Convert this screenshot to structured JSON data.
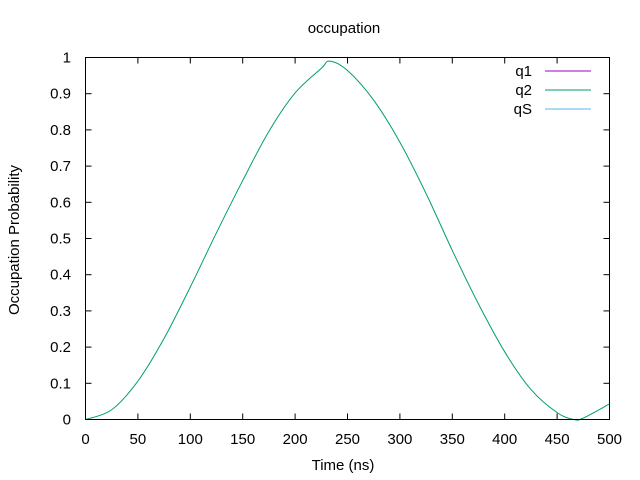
{
  "chart_data": {
    "type": "line",
    "title": "occupation",
    "xlabel": "Time (ns)",
    "ylabel": "Occupation Probability",
    "xlim": [
      0,
      500
    ],
    "ylim": [
      0,
      1
    ],
    "xticks": [
      0,
      50,
      100,
      150,
      200,
      250,
      300,
      350,
      400,
      450,
      500
    ],
    "yticks": [
      0,
      0.1,
      0.2,
      0.3,
      0.4,
      0.5,
      0.6,
      0.7,
      0.8,
      0.9,
      1
    ],
    "xtick_labels": [
      "0",
      "50",
      "100",
      "150",
      "200",
      "250",
      "300",
      "350",
      "400",
      "450",
      "500"
    ],
    "ytick_labels": [
      "0",
      "0.1",
      "0.2",
      "0.3",
      "0.4",
      "0.5",
      "0.6",
      "0.7",
      "0.8",
      "0.9",
      "1"
    ],
    "legend_position": "top-right",
    "grid": false,
    "x": [
      0,
      25,
      50,
      75,
      100,
      125,
      150,
      175,
      200,
      225,
      233,
      250,
      275,
      300,
      325,
      350,
      375,
      400,
      425,
      450,
      466,
      475,
      500
    ],
    "series": [
      {
        "name": "q1",
        "color": "#9400d3",
        "style": "solid",
        "values": [
          0,
          0,
          0,
          0,
          0,
          0,
          0,
          0,
          0,
          0,
          0,
          0,
          0,
          0,
          0,
          0,
          0,
          0,
          0,
          0,
          0,
          0,
          0
        ]
      },
      {
        "name": "q2",
        "color": "#009e73",
        "style": "solid",
        "values": [
          0.0,
          0.027,
          0.106,
          0.224,
          0.366,
          0.516,
          0.66,
          0.796,
          0.902,
          0.97,
          0.99,
          0.964,
          0.882,
          0.766,
          0.624,
          0.467,
          0.319,
          0.187,
          0.083,
          0.019,
          0.0,
          0.004,
          0.043
        ]
      },
      {
        "name": "qS",
        "color": "#56b4e9",
        "style": "solid",
        "values": [
          0,
          0,
          0,
          0,
          0,
          0,
          0,
          0,
          0,
          0,
          0,
          0,
          0,
          0,
          0,
          0,
          0,
          0,
          0,
          0,
          0,
          0,
          0
        ]
      }
    ]
  }
}
